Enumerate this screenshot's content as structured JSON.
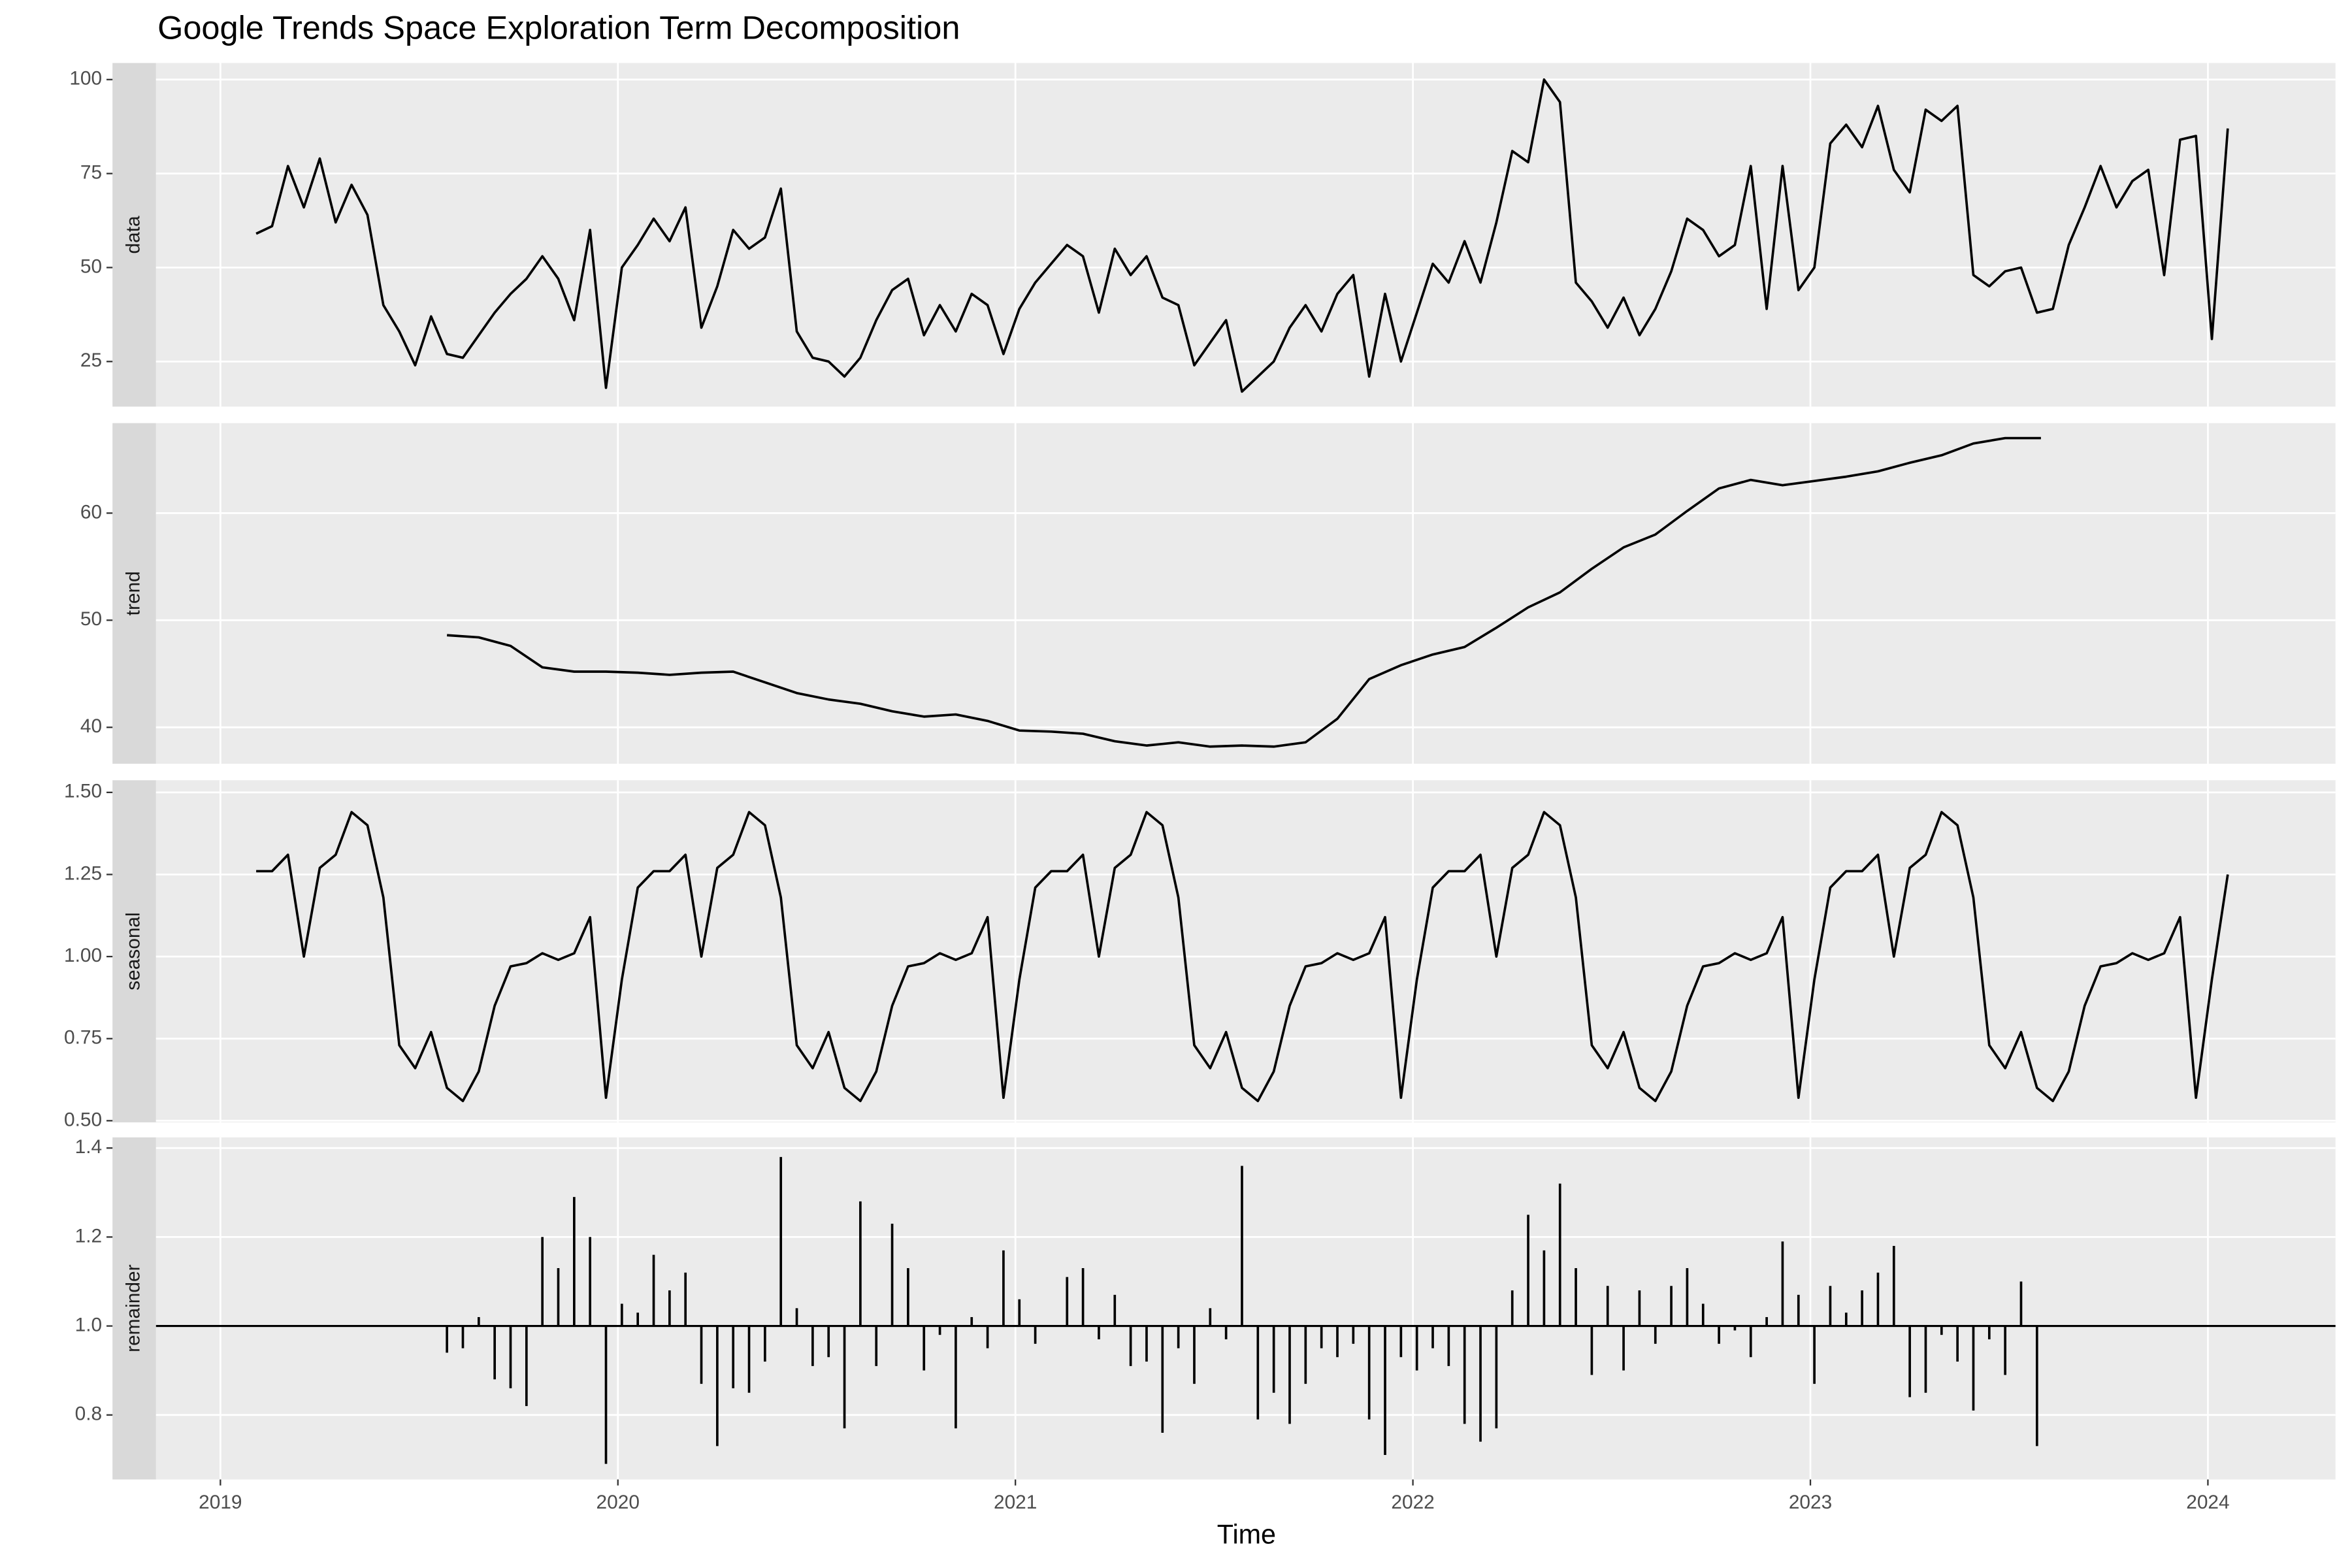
{
  "title": "Google Trends Space Exploration Term Decomposition",
  "x_label": "Time",
  "chart_data": [
    {
      "type": "line",
      "strip": "data",
      "color": "#000000",
      "grid": true,
      "xlim": [
        2018.838,
        2024.321
      ],
      "xticks": [
        2019,
        2020,
        2021,
        2022,
        2023,
        2024
      ],
      "ylim": [
        13,
        104.4
      ],
      "yticks": [
        25,
        50,
        75,
        100
      ],
      "x": [
        2019.09,
        2019.13,
        2019.17,
        2019.21,
        2019.25,
        2019.29,
        2019.33,
        2019.37,
        2019.41,
        2019.45,
        2019.49,
        2019.53,
        2019.57,
        2019.61,
        2019.65,
        2019.69,
        2019.73,
        2019.77,
        2019.81,
        2019.85,
        2019.89,
        2019.93,
        2019.97,
        2020.01,
        2020.05,
        2020.09,
        2020.13,
        2020.17,
        2020.21,
        2020.25,
        2020.29,
        2020.33,
        2020.37,
        2020.41,
        2020.45,
        2020.49,
        2020.53,
        2020.57,
        2020.61,
        2020.65,
        2020.69,
        2020.73,
        2020.77,
        2020.81,
        2020.85,
        2020.89,
        2020.93,
        2020.97,
        2021.01,
        2021.05,
        2021.09,
        2021.13,
        2021.17,
        2021.21,
        2021.25,
        2021.29,
        2021.33,
        2021.37,
        2021.41,
        2021.45,
        2021.49,
        2021.53,
        2021.57,
        2021.61,
        2021.65,
        2021.69,
        2021.73,
        2021.77,
        2021.81,
        2021.85,
        2021.89,
        2021.93,
        2021.97,
        2022.01,
        2022.05,
        2022.09,
        2022.13,
        2022.17,
        2022.21,
        2022.25,
        2022.29,
        2022.33,
        2022.37,
        2022.41,
        2022.45,
        2022.49,
        2022.53,
        2022.57,
        2022.61,
        2022.65,
        2022.69,
        2022.73,
        2022.77,
        2022.81,
        2022.85,
        2022.89,
        2022.93,
        2022.97,
        2023.01,
        2023.05,
        2023.09,
        2023.13,
        2023.17,
        2023.21,
        2023.25,
        2023.29,
        2023.33,
        2023.37,
        2023.41,
        2023.45,
        2023.49,
        2023.53,
        2023.57,
        2023.61,
        2023.65,
        2023.69,
        2023.73,
        2023.77,
        2023.81,
        2023.85,
        2023.89,
        2023.93,
        2023.97,
        2024.01,
        2024.05
      ],
      "values": [
        59,
        61,
        77,
        66,
        79,
        62,
        72,
        64,
        40,
        33,
        24,
        37,
        27,
        26,
        32,
        38,
        43,
        47,
        53,
        47,
        36,
        60,
        18,
        50,
        56,
        63,
        57,
        66,
        34,
        45,
        60,
        55,
        58,
        71,
        33,
        26,
        25,
        21,
        26,
        36,
        44,
        47,
        32,
        40,
        33,
        43,
        40,
        27,
        39,
        46,
        51,
        56,
        53,
        38,
        55,
        48,
        53,
        42,
        40,
        24,
        30,
        36,
        17,
        21,
        25,
        34,
        40,
        33,
        43,
        48,
        21,
        43,
        25,
        38,
        51,
        46,
        57,
        46,
        62,
        81,
        78,
        100,
        94,
        46,
        41,
        34,
        42,
        32,
        39,
        49,
        63,
        60,
        53,
        56,
        77,
        39,
        77,
        44,
        50,
        83,
        88,
        82,
        93,
        76,
        70,
        92,
        89,
        93,
        48,
        45,
        49,
        50,
        38,
        39,
        56,
        66,
        77,
        66,
        73,
        76,
        48,
        84,
        85,
        31,
        87
      ]
    },
    {
      "type": "line",
      "strip": "trend",
      "color": "#000000",
      "grid": true,
      "xlim": [
        2018.838,
        2024.321
      ],
      "xticks": [
        2019,
        2020,
        2021,
        2022,
        2023,
        2024
      ],
      "ylim": [
        36.6,
        68.4
      ],
      "yticks": [
        40,
        50,
        60
      ],
      "x": [
        2019.57,
        2019.65,
        2019.73,
        2019.81,
        2019.89,
        2019.97,
        2020.05,
        2020.13,
        2020.21,
        2020.29,
        2020.37,
        2020.45,
        2020.53,
        2020.61,
        2020.69,
        2020.77,
        2020.85,
        2020.93,
        2021.01,
        2021.09,
        2021.17,
        2021.25,
        2021.33,
        2021.41,
        2021.49,
        2021.57,
        2021.65,
        2021.73,
        2021.81,
        2021.89,
        2021.97,
        2022.05,
        2022.13,
        2022.21,
        2022.29,
        2022.37,
        2022.45,
        2022.53,
        2022.61,
        2022.69,
        2022.77,
        2022.85,
        2022.93,
        2023.01,
        2023.09,
        2023.17,
        2023.25,
        2023.33,
        2023.41,
        2023.49,
        2023.58
      ],
      "values": [
        48.6,
        48.4,
        47.6,
        45.6,
        45.2,
        45.2,
        45.1,
        44.9,
        45.1,
        45.2,
        44.2,
        43.2,
        42.6,
        42.2,
        41.5,
        41.0,
        41.2,
        40.6,
        39.7,
        39.6,
        39.4,
        38.7,
        38.3,
        38.6,
        38.2,
        38.3,
        38.2,
        38.6,
        40.8,
        44.5,
        45.8,
        46.8,
        47.5,
        49.3,
        51.2,
        52.6,
        54.8,
        56.8,
        58.0,
        60.2,
        62.3,
        63.1,
        62.6,
        63.0,
        63.4,
        63.9,
        64.7,
        65.4,
        66.5,
        67.0,
        67.0
      ]
    },
    {
      "type": "line",
      "strip": "seasonal",
      "color": "#000000",
      "grid": true,
      "xlim": [
        2018.838,
        2024.321
      ],
      "xticks": [
        2019,
        2020,
        2021,
        2022,
        2023,
        2024
      ],
      "ylim": [
        0.495,
        1.537
      ],
      "yticks": [
        {
          "value": 0.5,
          "label": "0.50"
        },
        {
          "value": 0.75,
          "label": "0.75"
        },
        {
          "value": 1,
          "label": "1.00"
        },
        {
          "value": 1.25,
          "label": "1.25"
        },
        {
          "value": 1.5,
          "label": "1.50"
        }
      ],
      "x": [
        2019.09,
        2019.13,
        2019.17,
        2019.21,
        2019.25,
        2019.29,
        2019.33,
        2019.37,
        2019.41,
        2019.45,
        2019.49,
        2019.53,
        2019.57,
        2019.61,
        2019.65,
        2019.69,
        2019.73,
        2019.77,
        2019.81,
        2019.85,
        2019.89,
        2019.93,
        2019.97,
        2020.01,
        2020.05,
        2020.09,
        2020.13,
        2020.17,
        2020.21,
        2020.25,
        2020.29,
        2020.33,
        2020.37,
        2020.41,
        2020.45,
        2020.49,
        2020.53,
        2020.57,
        2020.61,
        2020.65,
        2020.69,
        2020.73,
        2020.77,
        2020.81,
        2020.85,
        2020.89,
        2020.93,
        2020.97,
        2021.01,
        2021.05,
        2021.09,
        2021.13,
        2021.17,
        2021.21,
        2021.25,
        2021.29,
        2021.33,
        2021.37,
        2021.41,
        2021.45,
        2021.49,
        2021.53,
        2021.57,
        2021.61,
        2021.65,
        2021.69,
        2021.73,
        2021.77,
        2021.81,
        2021.85,
        2021.89,
        2021.93,
        2021.97,
        2022.01,
        2022.05,
        2022.09,
        2022.13,
        2022.17,
        2022.21,
        2022.25,
        2022.29,
        2022.33,
        2022.37,
        2022.41,
        2022.45,
        2022.49,
        2022.53,
        2022.57,
        2022.61,
        2022.65,
        2022.69,
        2022.73,
        2022.77,
        2022.81,
        2022.85,
        2022.89,
        2022.93,
        2022.97,
        2023.01,
        2023.05,
        2023.09,
        2023.13,
        2023.17,
        2023.21,
        2023.25,
        2023.29,
        2023.33,
        2023.37,
        2023.41,
        2023.45,
        2023.49,
        2023.53,
        2023.57,
        2023.61,
        2023.65,
        2023.69,
        2023.73,
        2023.77,
        2023.81,
        2023.85,
        2023.89,
        2023.93,
        2023.97,
        2024.01,
        2024.05
      ],
      "values": [
        1.26,
        1.26,
        1.31,
        1.0,
        1.27,
        1.31,
        1.44,
        1.4,
        1.18,
        0.73,
        0.66,
        0.77,
        0.6,
        0.56,
        0.65,
        0.85,
        0.97,
        0.98,
        1.01,
        0.99,
        1.01,
        1.12,
        0.57,
        0.93,
        1.21,
        1.26,
        1.26,
        1.31,
        1.0,
        1.27,
        1.31,
        1.44,
        1.4,
        1.18,
        0.73,
        0.66,
        0.77,
        0.6,
        0.56,
        0.65,
        0.85,
        0.97,
        0.98,
        1.01,
        0.99,
        1.01,
        1.12,
        0.57,
        0.93,
        1.21,
        1.26,
        1.26,
        1.31,
        1.0,
        1.27,
        1.31,
        1.44,
        1.4,
        1.18,
        0.73,
        0.66,
        0.77,
        0.6,
        0.56,
        0.65,
        0.85,
        0.97,
        0.98,
        1.01,
        0.99,
        1.01,
        1.12,
        0.57,
        0.93,
        1.21,
        1.26,
        1.26,
        1.31,
        1.0,
        1.27,
        1.31,
        1.44,
        1.4,
        1.18,
        0.73,
        0.66,
        0.77,
        0.6,
        0.56,
        0.65,
        0.85,
        0.97,
        0.98,
        1.01,
        0.99,
        1.01,
        1.12,
        0.57,
        0.93,
        1.21,
        1.26,
        1.26,
        1.31,
        1.0,
        1.27,
        1.31,
        1.44,
        1.4,
        1.18,
        0.73,
        0.66,
        0.77,
        0.6,
        0.56,
        0.65,
        0.85,
        0.97,
        0.98,
        1.01,
        0.99,
        1.01,
        1.12,
        0.57,
        0.93,
        1.25
      ]
    },
    {
      "type": "bar",
      "strip": "remainder",
      "color": "#000000",
      "grid": true,
      "baseline": 1,
      "xlim": [
        2018.838,
        2024.321
      ],
      "xticks": [
        2019,
        2020,
        2021,
        2022,
        2023,
        2024
      ],
      "ylim": [
        0.655,
        1.424
      ],
      "yticks": [
        0.8,
        {
          "value": 1,
          "label": "1.0"
        },
        1.2,
        1.4
      ],
      "x": [
        2019.57,
        2019.61,
        2019.65,
        2019.69,
        2019.73,
        2019.77,
        2019.81,
        2019.85,
        2019.89,
        2019.93,
        2019.97,
        2020.01,
        2020.05,
        2020.09,
        2020.13,
        2020.17,
        2020.21,
        2020.25,
        2020.29,
        2020.33,
        2020.37,
        2020.41,
        2020.45,
        2020.49,
        2020.53,
        2020.57,
        2020.61,
        2020.65,
        2020.69,
        2020.73,
        2020.77,
        2020.81,
        2020.85,
        2020.89,
        2020.93,
        2020.97,
        2021.01,
        2021.05,
        2021.09,
        2021.13,
        2021.17,
        2021.21,
        2021.25,
        2021.29,
        2021.33,
        2021.37,
        2021.41,
        2021.45,
        2021.49,
        2021.53,
        2021.57,
        2021.61,
        2021.65,
        2021.69,
        2021.73,
        2021.77,
        2021.81,
        2021.85,
        2021.89,
        2021.93,
        2021.97,
        2022.01,
        2022.05,
        2022.09,
        2022.13,
        2022.17,
        2022.21,
        2022.25,
        2022.29,
        2022.33,
        2022.37,
        2022.41,
        2022.45,
        2022.49,
        2022.53,
        2022.57,
        2022.61,
        2022.65,
        2022.69,
        2022.73,
        2022.77,
        2022.81,
        2022.85,
        2022.89,
        2022.93,
        2022.97,
        2023.01,
        2023.05,
        2023.09,
        2023.13,
        2023.17,
        2023.21,
        2023.25,
        2023.29,
        2023.33,
        2023.37,
        2023.41,
        2023.45,
        2023.49,
        2023.53,
        2023.57
      ],
      "values": [
        0.94,
        0.95,
        1.02,
        0.88,
        0.86,
        0.82,
        1.2,
        1.13,
        1.29,
        1.2,
        0.69,
        1.05,
        1.03,
        1.16,
        1.08,
        1.12,
        0.87,
        0.73,
        0.86,
        0.85,
        0.92,
        1.38,
        1.04,
        0.91,
        0.93,
        0.77,
        1.28,
        0.91,
        1.23,
        1.13,
        0.9,
        0.98,
        0.77,
        1.02,
        0.95,
        1.17,
        1.06,
        0.96,
        1.0,
        1.11,
        1.13,
        0.97,
        1.07,
        0.91,
        0.92,
        0.76,
        0.95,
        0.87,
        1.04,
        0.97,
        1.36,
        0.79,
        0.85,
        0.78,
        0.87,
        0.95,
        0.93,
        0.96,
        0.79,
        0.71,
        0.93,
        0.9,
        0.95,
        0.91,
        0.78,
        0.74,
        0.77,
        1.08,
        1.25,
        1.17,
        1.32,
        1.13,
        0.89,
        1.09,
        0.9,
        1.08,
        0.96,
        1.09,
        1.13,
        1.05,
        0.96,
        0.99,
        0.93,
        1.02,
        1.19,
        1.07,
        0.87,
        1.09,
        1.03,
        1.08,
        1.12,
        1.18,
        0.84,
        0.85,
        0.98,
        0.92,
        0.81,
        0.97,
        0.89,
        1.1,
        0.73
      ]
    }
  ]
}
